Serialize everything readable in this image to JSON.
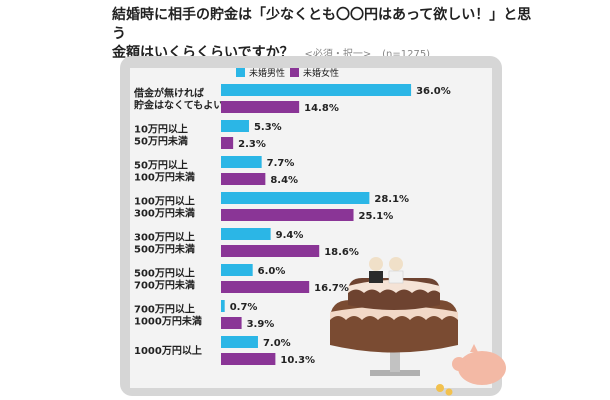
{
  "title": {
    "line1": "結婚時に相手の貯金は「少なくとも〇〇円はあって欲しい！」と思う",
    "line2": "金額はいくらくらいですか？",
    "sub": "<必須・択一>",
    "n": "(n=1275)"
  },
  "colors": {
    "male": "#2bb6e6",
    "female": "#8a3596"
  },
  "chart_data": {
    "type": "bar",
    "orientation": "horizontal",
    "unit": "%",
    "categories": [
      [
        "借金が無ければ",
        "貯金はなくてもよい"
      ],
      [
        "10万円以上",
        "50万円未満"
      ],
      [
        "50万円以上",
        "100万円未満"
      ],
      [
        "100万円以上",
        "300万円未満"
      ],
      [
        "300万円以上",
        "500万円未満"
      ],
      [
        "500万円以上",
        "700万円未満"
      ],
      [
        "700万円以上",
        "1000万円未満"
      ],
      [
        "1000万円以上"
      ]
    ],
    "series": [
      {
        "name": "未婚男性",
        "values": [
          36.0,
          5.3,
          7.7,
          28.1,
          9.4,
          6.0,
          0.7,
          7.0
        ]
      },
      {
        "name": "未婚女性",
        "values": [
          14.8,
          2.3,
          8.4,
          25.1,
          18.6,
          16.7,
          3.9,
          10.3
        ]
      }
    ],
    "legend": "top"
  }
}
